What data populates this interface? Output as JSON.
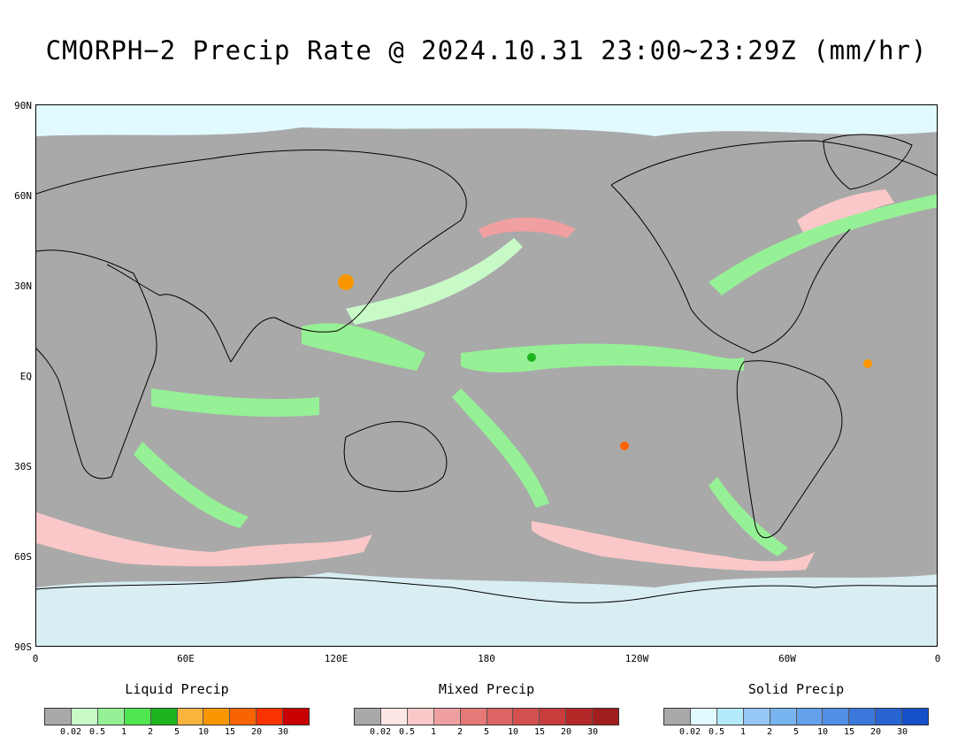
{
  "title": "CMORPH−2 Precip Rate @ 2024.10.31 23:00~23:29Z (mm/hr)",
  "y_axis_labels": [
    "90N",
    "60N",
    "30N",
    "EQ",
    "30S",
    "60S",
    "90S"
  ],
  "x_axis_labels": [
    "0",
    "60E",
    "120E",
    "180",
    "120W",
    "60W",
    "0"
  ],
  "colors": {
    "no_precip": "#a9a9a9",
    "coast": "#000000"
  },
  "legends": [
    {
      "title": "Liquid Precip",
      "ticks": [
        "0.02",
        "0.5",
        "1",
        "2",
        "5",
        "10",
        "15",
        "20",
        "30"
      ],
      "colors": [
        "#a9a9a9",
        "#c8fac8",
        "#96f096",
        "#50e650",
        "#1eb41e",
        "#fab43c",
        "#fa9600",
        "#fa6400",
        "#fa3200",
        "#c80000"
      ]
    },
    {
      "title": "Mixed Precip",
      "ticks": [
        "0.02",
        "0.5",
        "1",
        "2",
        "5",
        "10",
        "15",
        "20",
        "30"
      ],
      "colors": [
        "#a9a9a9",
        "#fde6e6",
        "#fac8c8",
        "#f0a0a0",
        "#e67878",
        "#dc6464",
        "#d25050",
        "#c83c3c",
        "#b42828",
        "#a01e1e"
      ]
    },
    {
      "title": "Solid Precip",
      "ticks": [
        "0.02",
        "0.5",
        "1",
        "2",
        "5",
        "10",
        "15",
        "20",
        "30"
      ],
      "colors": [
        "#a9a9a9",
        "#e1faff",
        "#b4ebfa",
        "#96c8f5",
        "#78b4f0",
        "#64a0eb",
        "#5090e6",
        "#3c78dc",
        "#2864d2",
        "#1450c8"
      ]
    }
  ]
}
